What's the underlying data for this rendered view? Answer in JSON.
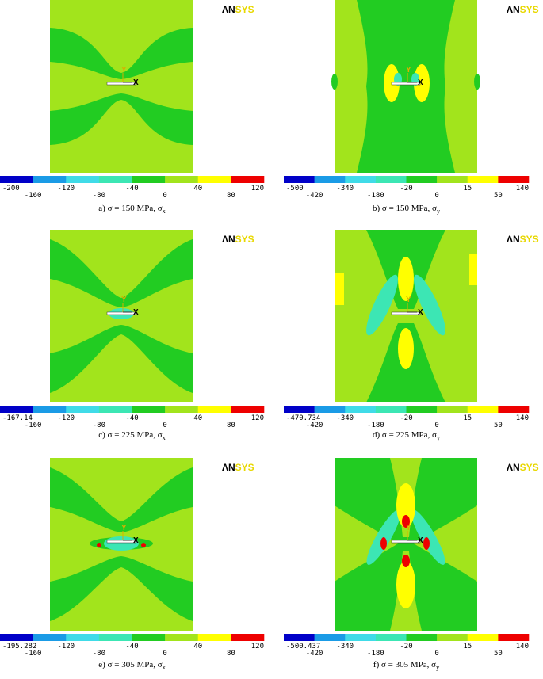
{
  "legend_colors": [
    "#0000c8",
    "#1a9be6",
    "#40dbe8",
    "#3ce6b4",
    "#22cc22",
    "#a2e41c",
    "#ffff00",
    "#ee0000"
  ],
  "panels": [
    {
      "caption": "a) σ = 150 MPa, σ",
      "caption_sub": "x",
      "logo": [
        "ΛN",
        "SYS"
      ],
      "triad": [
        "Y",
        "X"
      ],
      "legend_labels": [
        "-200",
        "-160",
        "-120",
        "-80",
        "-40",
        "0",
        "40",
        "80",
        "120"
      ]
    },
    {
      "caption": "b) σ = 150 MPa, σ",
      "caption_sub": "y",
      "logo": [
        "ΛN",
        "SYS"
      ],
      "triad": [
        "Y",
        "X"
      ],
      "legend_labels": [
        "-500",
        "-420",
        "-340",
        "-180",
        "-20",
        "0",
        "15",
        "50",
        "140"
      ]
    },
    {
      "caption": "c) σ = 225 MPa, σ",
      "caption_sub": "x",
      "logo": [
        "ΛN",
        "SYS"
      ],
      "triad": [
        "Y",
        "X"
      ],
      "legend_labels": [
        "-167.14",
        "-160",
        "-120",
        "-80",
        "-40",
        "0",
        "40",
        "80",
        "120"
      ]
    },
    {
      "caption": "d) σ = 225 MPa, σ",
      "caption_sub": "y",
      "logo": [
        "ΛN",
        "SYS"
      ],
      "triad": [
        "Y",
        "X"
      ],
      "legend_labels": [
        "-470.734",
        "-420",
        "-340",
        "-180",
        "-20",
        "0",
        "15",
        "50",
        "140"
      ]
    },
    {
      "caption": "e) σ = 305 MPa, σ",
      "caption_sub": "x",
      "logo": [
        "ΛN",
        "SYS"
      ],
      "triad": [
        "Y",
        "X"
      ],
      "legend_labels": [
        "-195.282",
        "-160",
        "-120",
        "-80",
        "-40",
        "0",
        "40",
        "80",
        "120"
      ]
    },
    {
      "caption": "f) σ = 305 MPa, σ",
      "caption_sub": "y",
      "logo": [
        "ΛN",
        "SYS"
      ],
      "triad": [
        "Y",
        "X"
      ],
      "legend_labels": [
        "-500.437",
        "-420",
        "-340",
        "-180",
        "-20",
        "0",
        "15",
        "50",
        "140"
      ]
    }
  ]
}
